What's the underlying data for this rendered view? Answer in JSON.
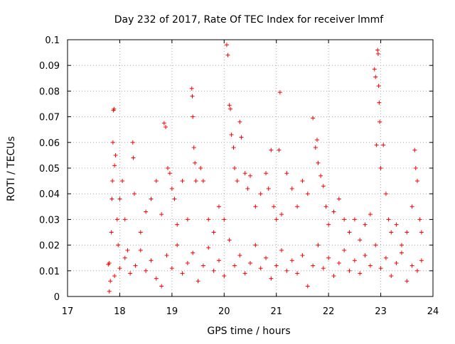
{
  "chart_data": {
    "type": "scatter",
    "title": "Day 232 of 2017, Rate Of TEC Index for receiver lmmf",
    "xlabel": "GPS time / hours",
    "ylabel": "ROTI / TECUs",
    "xlim": [
      17,
      24
    ],
    "ylim": [
      0,
      0.1
    ],
    "xticks": [
      "17",
      "18",
      "19",
      "20",
      "21",
      "22",
      "23",
      "24"
    ],
    "yticks": [
      "0",
      "0.01",
      "0.02",
      "0.03",
      "0.04",
      "0.05",
      "0.06",
      "0.07",
      "0.08",
      "0.09",
      "0.1"
    ],
    "grid": true,
    "legend": "none",
    "marker": "plus",
    "color": "#ff0000",
    "series": [
      {
        "points": [
          [
            17.78,
            0.0125
          ],
          [
            17.8,
            0.002
          ],
          [
            17.82,
            0.006
          ],
          [
            17.84,
            0.025
          ],
          [
            17.85,
            0.038
          ],
          [
            17.86,
            0.045
          ],
          [
            17.87,
            0.06
          ],
          [
            17.88,
            0.0725
          ],
          [
            17.89,
            0.073
          ],
          [
            17.9,
            0.051
          ],
          [
            17.92,
            0.055
          ],
          [
            17.95,
            0.03
          ],
          [
            17.97,
            0.02
          ],
          [
            18.0,
            0.038
          ],
          [
            18.05,
            0.045
          ],
          [
            18.1,
            0.03
          ],
          [
            18.15,
            0.018
          ],
          [
            18.25,
            0.06
          ],
          [
            18.26,
            0.054
          ],
          [
            18.28,
            0.04
          ],
          [
            18.4,
            0.025
          ],
          [
            18.5,
            0.033
          ],
          [
            18.6,
            0.038
          ],
          [
            18.7,
            0.045
          ],
          [
            18.8,
            0.032
          ],
          [
            18.85,
            0.0675
          ],
          [
            18.88,
            0.066
          ],
          [
            18.92,
            0.05
          ],
          [
            18.96,
            0.048
          ],
          [
            19.0,
            0.042
          ],
          [
            19.05,
            0.038
          ],
          [
            19.1,
            0.028
          ],
          [
            19.2,
            0.045
          ],
          [
            19.3,
            0.03
          ],
          [
            19.38,
            0.081
          ],
          [
            19.39,
            0.078
          ],
          [
            19.4,
            0.07
          ],
          [
            19.42,
            0.058
          ],
          [
            19.44,
            0.052
          ],
          [
            19.46,
            0.045
          ],
          [
            19.55,
            0.05
          ],
          [
            19.6,
            0.045
          ],
          [
            19.7,
            0.03
          ],
          [
            19.8,
            0.025
          ],
          [
            19.9,
            0.035
          ],
          [
            20.0,
            0.03
          ],
          [
            20.05,
            0.098
          ],
          [
            20.07,
            0.094
          ],
          [
            20.1,
            0.0745
          ],
          [
            20.12,
            0.073
          ],
          [
            20.14,
            0.063
          ],
          [
            20.18,
            0.058
          ],
          [
            20.2,
            0.05
          ],
          [
            20.25,
            0.045
          ],
          [
            20.3,
            0.068
          ],
          [
            20.33,
            0.062
          ],
          [
            20.4,
            0.048
          ],
          [
            20.45,
            0.042
          ],
          [
            20.5,
            0.047
          ],
          [
            20.6,
            0.035
          ],
          [
            20.7,
            0.04
          ],
          [
            20.8,
            0.048
          ],
          [
            20.85,
            0.042
          ],
          [
            20.9,
            0.057
          ],
          [
            20.95,
            0.035
          ],
          [
            21.0,
            0.03
          ],
          [
            21.05,
            0.057
          ],
          [
            21.07,
            0.0795
          ],
          [
            21.1,
            0.032
          ],
          [
            21.2,
            0.048
          ],
          [
            21.3,
            0.042
          ],
          [
            21.4,
            0.035
          ],
          [
            21.5,
            0.045
          ],
          [
            21.6,
            0.04
          ],
          [
            21.7,
            0.0695
          ],
          [
            21.75,
            0.058
          ],
          [
            21.78,
            0.061
          ],
          [
            21.8,
            0.052
          ],
          [
            21.85,
            0.047
          ],
          [
            21.9,
            0.043
          ],
          [
            21.95,
            0.035
          ],
          [
            22.0,
            0.028
          ],
          [
            22.1,
            0.033
          ],
          [
            22.2,
            0.038
          ],
          [
            22.3,
            0.03
          ],
          [
            22.4,
            0.025
          ],
          [
            22.5,
            0.03
          ],
          [
            22.6,
            0.022
          ],
          [
            22.7,
            0.028
          ],
          [
            22.8,
            0.032
          ],
          [
            22.88,
            0.0885
          ],
          [
            22.9,
            0.0855
          ],
          [
            22.92,
            0.059
          ],
          [
            22.94,
            0.096
          ],
          [
            22.95,
            0.0945
          ],
          [
            22.96,
            0.082
          ],
          [
            22.97,
            0.0755
          ],
          [
            22.98,
            0.068
          ],
          [
            23.0,
            0.05
          ],
          [
            23.05,
            0.059
          ],
          [
            23.1,
            0.04
          ],
          [
            23.15,
            0.03
          ],
          [
            23.2,
            0.025
          ],
          [
            23.3,
            0.028
          ],
          [
            23.4,
            0.02
          ],
          [
            23.5,
            0.025
          ],
          [
            23.6,
            0.035
          ],
          [
            23.65,
            0.057
          ],
          [
            23.67,
            0.05
          ],
          [
            23.7,
            0.045
          ],
          [
            23.75,
            0.03
          ],
          [
            23.78,
            0.025
          ],
          [
            17.8,
            0.013
          ],
          [
            17.9,
            0.008
          ],
          [
            18.0,
            0.011
          ],
          [
            18.1,
            0.015
          ],
          [
            18.2,
            0.009
          ],
          [
            18.3,
            0.012
          ],
          [
            18.4,
            0.018
          ],
          [
            18.5,
            0.01
          ],
          [
            18.6,
            0.014
          ],
          [
            18.7,
            0.007
          ],
          [
            18.8,
            0.004
          ],
          [
            18.9,
            0.016
          ],
          [
            19.0,
            0.011
          ],
          [
            19.1,
            0.02
          ],
          [
            19.2,
            0.009
          ],
          [
            19.3,
            0.013
          ],
          [
            19.4,
            0.017
          ],
          [
            19.5,
            0.006
          ],
          [
            19.6,
            0.012
          ],
          [
            19.7,
            0.019
          ],
          [
            19.8,
            0.01
          ],
          [
            19.9,
            0.014
          ],
          [
            20.0,
            0.008
          ],
          [
            20.1,
            0.022
          ],
          [
            20.2,
            0.012
          ],
          [
            20.3,
            0.016
          ],
          [
            20.4,
            0.009
          ],
          [
            20.5,
            0.013
          ],
          [
            20.6,
            0.02
          ],
          [
            20.7,
            0.011
          ],
          [
            20.8,
            0.015
          ],
          [
            20.9,
            0.007
          ],
          [
            21.0,
            0.012
          ],
          [
            21.1,
            0.018
          ],
          [
            21.2,
            0.01
          ],
          [
            21.3,
            0.014
          ],
          [
            21.4,
            0.009
          ],
          [
            21.5,
            0.016
          ],
          [
            21.6,
            0.004
          ],
          [
            21.7,
            0.012
          ],
          [
            21.8,
            0.02
          ],
          [
            21.9,
            0.011
          ],
          [
            22.0,
            0.015
          ],
          [
            22.1,
            0.008
          ],
          [
            22.2,
            0.013
          ],
          [
            22.3,
            0.018
          ],
          [
            22.4,
            0.01
          ],
          [
            22.5,
            0.014
          ],
          [
            22.6,
            0.009
          ],
          [
            22.7,
            0.016
          ],
          [
            22.8,
            0.012
          ],
          [
            22.9,
            0.02
          ],
          [
            23.0,
            0.011
          ],
          [
            23.1,
            0.015
          ],
          [
            23.2,
            0.008
          ],
          [
            23.3,
            0.013
          ],
          [
            23.4,
            0.017
          ],
          [
            23.5,
            0.006
          ],
          [
            23.6,
            0.012
          ],
          [
            23.7,
            0.01
          ],
          [
            23.78,
            0.014
          ]
        ]
      }
    ]
  }
}
